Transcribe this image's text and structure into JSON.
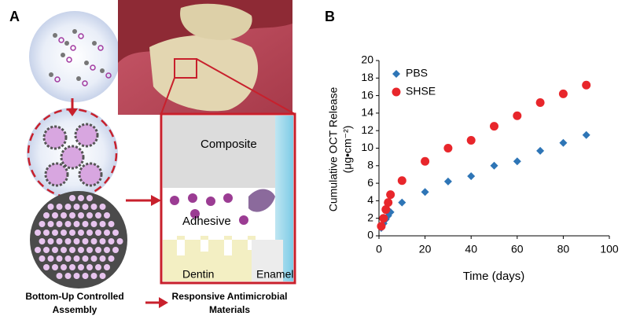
{
  "panel_labels": [
    "A",
    "B"
  ],
  "panel_a": {
    "composite": "Composite",
    "adhesive": "Adhesive",
    "dentin": "Dentin",
    "enamel": "Enamel",
    "caption_left": [
      "Bottom-Up Controlled",
      "Assembly"
    ],
    "caption_right": [
      "Responsive Antimicrobial",
      "Materials"
    ]
  },
  "chart_data": {
    "type": "scatter",
    "xlabel": "Time (days)",
    "ylabel": "Cumulative OCT Release",
    "ylabel_unit": "(μg•cm⁻²)",
    "x": [
      1,
      2,
      3,
      4,
      5,
      10,
      20,
      30,
      40,
      50,
      60,
      70,
      80,
      90
    ],
    "series": [
      {
        "name": "PBS",
        "color": "#2e75b6",
        "marker": "diamond",
        "values": [
          0.9,
          1.4,
          1.9,
          2.3,
          2.7,
          3.8,
          5.0,
          6.2,
          6.8,
          8.0,
          8.5,
          9.7,
          10.6,
          11.5
        ]
      },
      {
        "name": "SHSE",
        "color": "#e8262b",
        "marker": "circle",
        "values": [
          1.1,
          2.0,
          3.0,
          3.8,
          4.7,
          6.3,
          8.5,
          10.0,
          10.9,
          12.5,
          13.7,
          15.2,
          16.2,
          17.2
        ]
      }
    ],
    "xlim": [
      0,
      100
    ],
    "xticks": [
      0,
      20,
      40,
      60,
      80,
      100
    ],
    "ylim": [
      0,
      20
    ],
    "yticks": [
      0,
      2,
      4,
      6,
      8,
      10,
      12,
      14,
      16,
      18,
      20
    ],
    "legend": "upper left"
  }
}
